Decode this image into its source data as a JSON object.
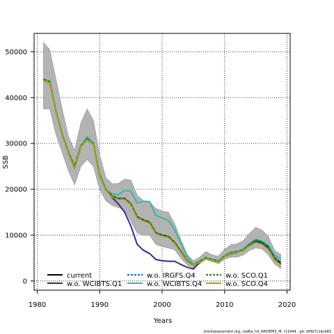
{
  "chart_data": {
    "type": "line",
    "xlabel": "Years",
    "ylabel": "SSB",
    "xlim": [
      1979.5,
      2020.5
    ],
    "ylim": [
      -2000,
      54000
    ],
    "xticks": [
      1980,
      1990,
      2000,
      2010,
      2020
    ],
    "yticks": [
      0,
      10000,
      20000,
      30000,
      40000,
      50000
    ],
    "grid": true,
    "legend_position": "bottom-left",
    "x": [
      1981,
      1982,
      1983,
      1984,
      1985,
      1986,
      1987,
      1988,
      1989,
      1990,
      1991,
      1992,
      1993,
      1994,
      1995,
      1996,
      1997,
      1998,
      1999,
      2000,
      2001,
      2002,
      2003,
      2004,
      2005,
      2006,
      2007,
      2008,
      2009,
      2010,
      2011,
      2012,
      2013,
      2014,
      2015,
      2016,
      2017,
      2018,
      2019
    ],
    "confidence_band": {
      "lower": [
        37500,
        37600,
        32000,
        28000,
        24000,
        21000,
        25000,
        26500,
        25000,
        20000,
        17500,
        16500,
        16000,
        15500,
        13000,
        10500,
        10000,
        10000,
        8000,
        7500,
        7200,
        6800,
        5000,
        3500,
        2800,
        3700,
        4700,
        4200,
        3800,
        4700,
        5200,
        5200,
        5700,
        6700,
        7200,
        7000,
        5700,
        3700,
        2700
      ],
      "upper": [
        52000,
        50500,
        44000,
        37500,
        31500,
        28500,
        34500,
        37500,
        35000,
        27500,
        22500,
        21200,
        21300,
        22200,
        22000,
        18700,
        17500,
        17200,
        15800,
        15300,
        15000,
        12500,
        9000,
        5800,
        4400,
        5200,
        6400,
        5700,
        5400,
        6900,
        7900,
        8100,
        8800,
        10400,
        11700,
        11100,
        9700,
        6700,
        5800
      ]
    },
    "series": [
      {
        "name": "current",
        "color": "#000000",
        "dash": "solid",
        "values": [
          44000,
          43500,
          37000,
          32000,
          28000,
          25000,
          29500,
          31000,
          30000,
          23000,
          20000,
          18500,
          18000,
          18000,
          16800,
          14000,
          13300,
          12800,
          10500,
          10000,
          9700,
          8400,
          6500,
          4400,
          3500,
          4300,
          5100,
          4700,
          4300,
          5500,
          6200,
          6400,
          6800,
          8000,
          8900,
          8500,
          7400,
          5000,
          4000
        ]
      },
      {
        "name": "w.o. WCIBTS.Q1",
        "color": "#352a87",
        "dash": "solid",
        "values": [
          44000,
          43500,
          37000,
          32000,
          28000,
          25000,
          29500,
          31000,
          30000,
          23000,
          20000,
          18200,
          16800,
          15000,
          12000,
          8000,
          6700,
          6000,
          4700,
          4400,
          4300,
          4300,
          3600,
          3000,
          2600,
          4100,
          5000,
          4500,
          4200,
          5300,
          5900,
          6200,
          6700,
          7900,
          8700,
          8200,
          7200,
          4800,
          3700
        ]
      },
      {
        "name": "w.o. IRGFS.Q4",
        "color": "#0f5cdd",
        "dash": "dashed",
        "values": [
          44000,
          43500,
          37000,
          32000,
          28000,
          25000,
          29500,
          31000,
          30000,
          23000,
          20000,
          18500,
          18000,
          18000,
          16800,
          14000,
          13300,
          12800,
          10500,
          10000,
          9700,
          8400,
          6500,
          4400,
          3500,
          4300,
          5100,
          4700,
          4300,
          5500,
          6200,
          6400,
          6800,
          8000,
          8900,
          8500,
          7400,
          5000,
          4000
        ]
      },
      {
        "name": "w.o. WCIBTS.Q4",
        "color": "#33b8a0",
        "dash": "solid",
        "values": [
          44000,
          43500,
          37000,
          32000,
          28000,
          25000,
          29500,
          31500,
          30000,
          23500,
          20000,
          19000,
          18800,
          19800,
          19600,
          17000,
          17400,
          17300,
          14300,
          13800,
          13200,
          11200,
          8300,
          5300,
          3600,
          4300,
          5100,
          4700,
          4300,
          5500,
          6200,
          6400,
          7000,
          8200,
          9100,
          8700,
          7800,
          5600,
          4800
        ]
      },
      {
        "name": "w.o. SCO.Q1",
        "color": "#1e7d1e",
        "dash": "dashed",
        "values": [
          44000,
          43500,
          37000,
          32000,
          28000,
          25000,
          29500,
          31000,
          30000,
          23000,
          20000,
          18500,
          18000,
          18000,
          16800,
          14000,
          13300,
          12800,
          10500,
          10000,
          9700,
          8400,
          6500,
          4400,
          3500,
          4300,
          5100,
          4700,
          4300,
          5500,
          6200,
          6400,
          6800,
          8000,
          8900,
          8500,
          7400,
          5000,
          4000
        ]
      },
      {
        "name": "w.o. SCO.Q4",
        "color": "#a1a114",
        "dash": "solid",
        "values": [
          43700,
          43200,
          36800,
          31800,
          27800,
          24500,
          29300,
          30800,
          29800,
          22800,
          19800,
          18300,
          17800,
          17800,
          16600,
          13800,
          13100,
          12600,
          10300,
          9800,
          9500,
          8200,
          6300,
          4300,
          3400,
          4100,
          4900,
          4500,
          4100,
          5300,
          6000,
          6200,
          6600,
          7700,
          8400,
          8000,
          6900,
          4600,
          3500
        ]
      }
    ]
  },
  "footer_text": "stockassessment.org, cod6a_hd_WKDEM3_M, r11944 , git: df0b7c1bcb83"
}
